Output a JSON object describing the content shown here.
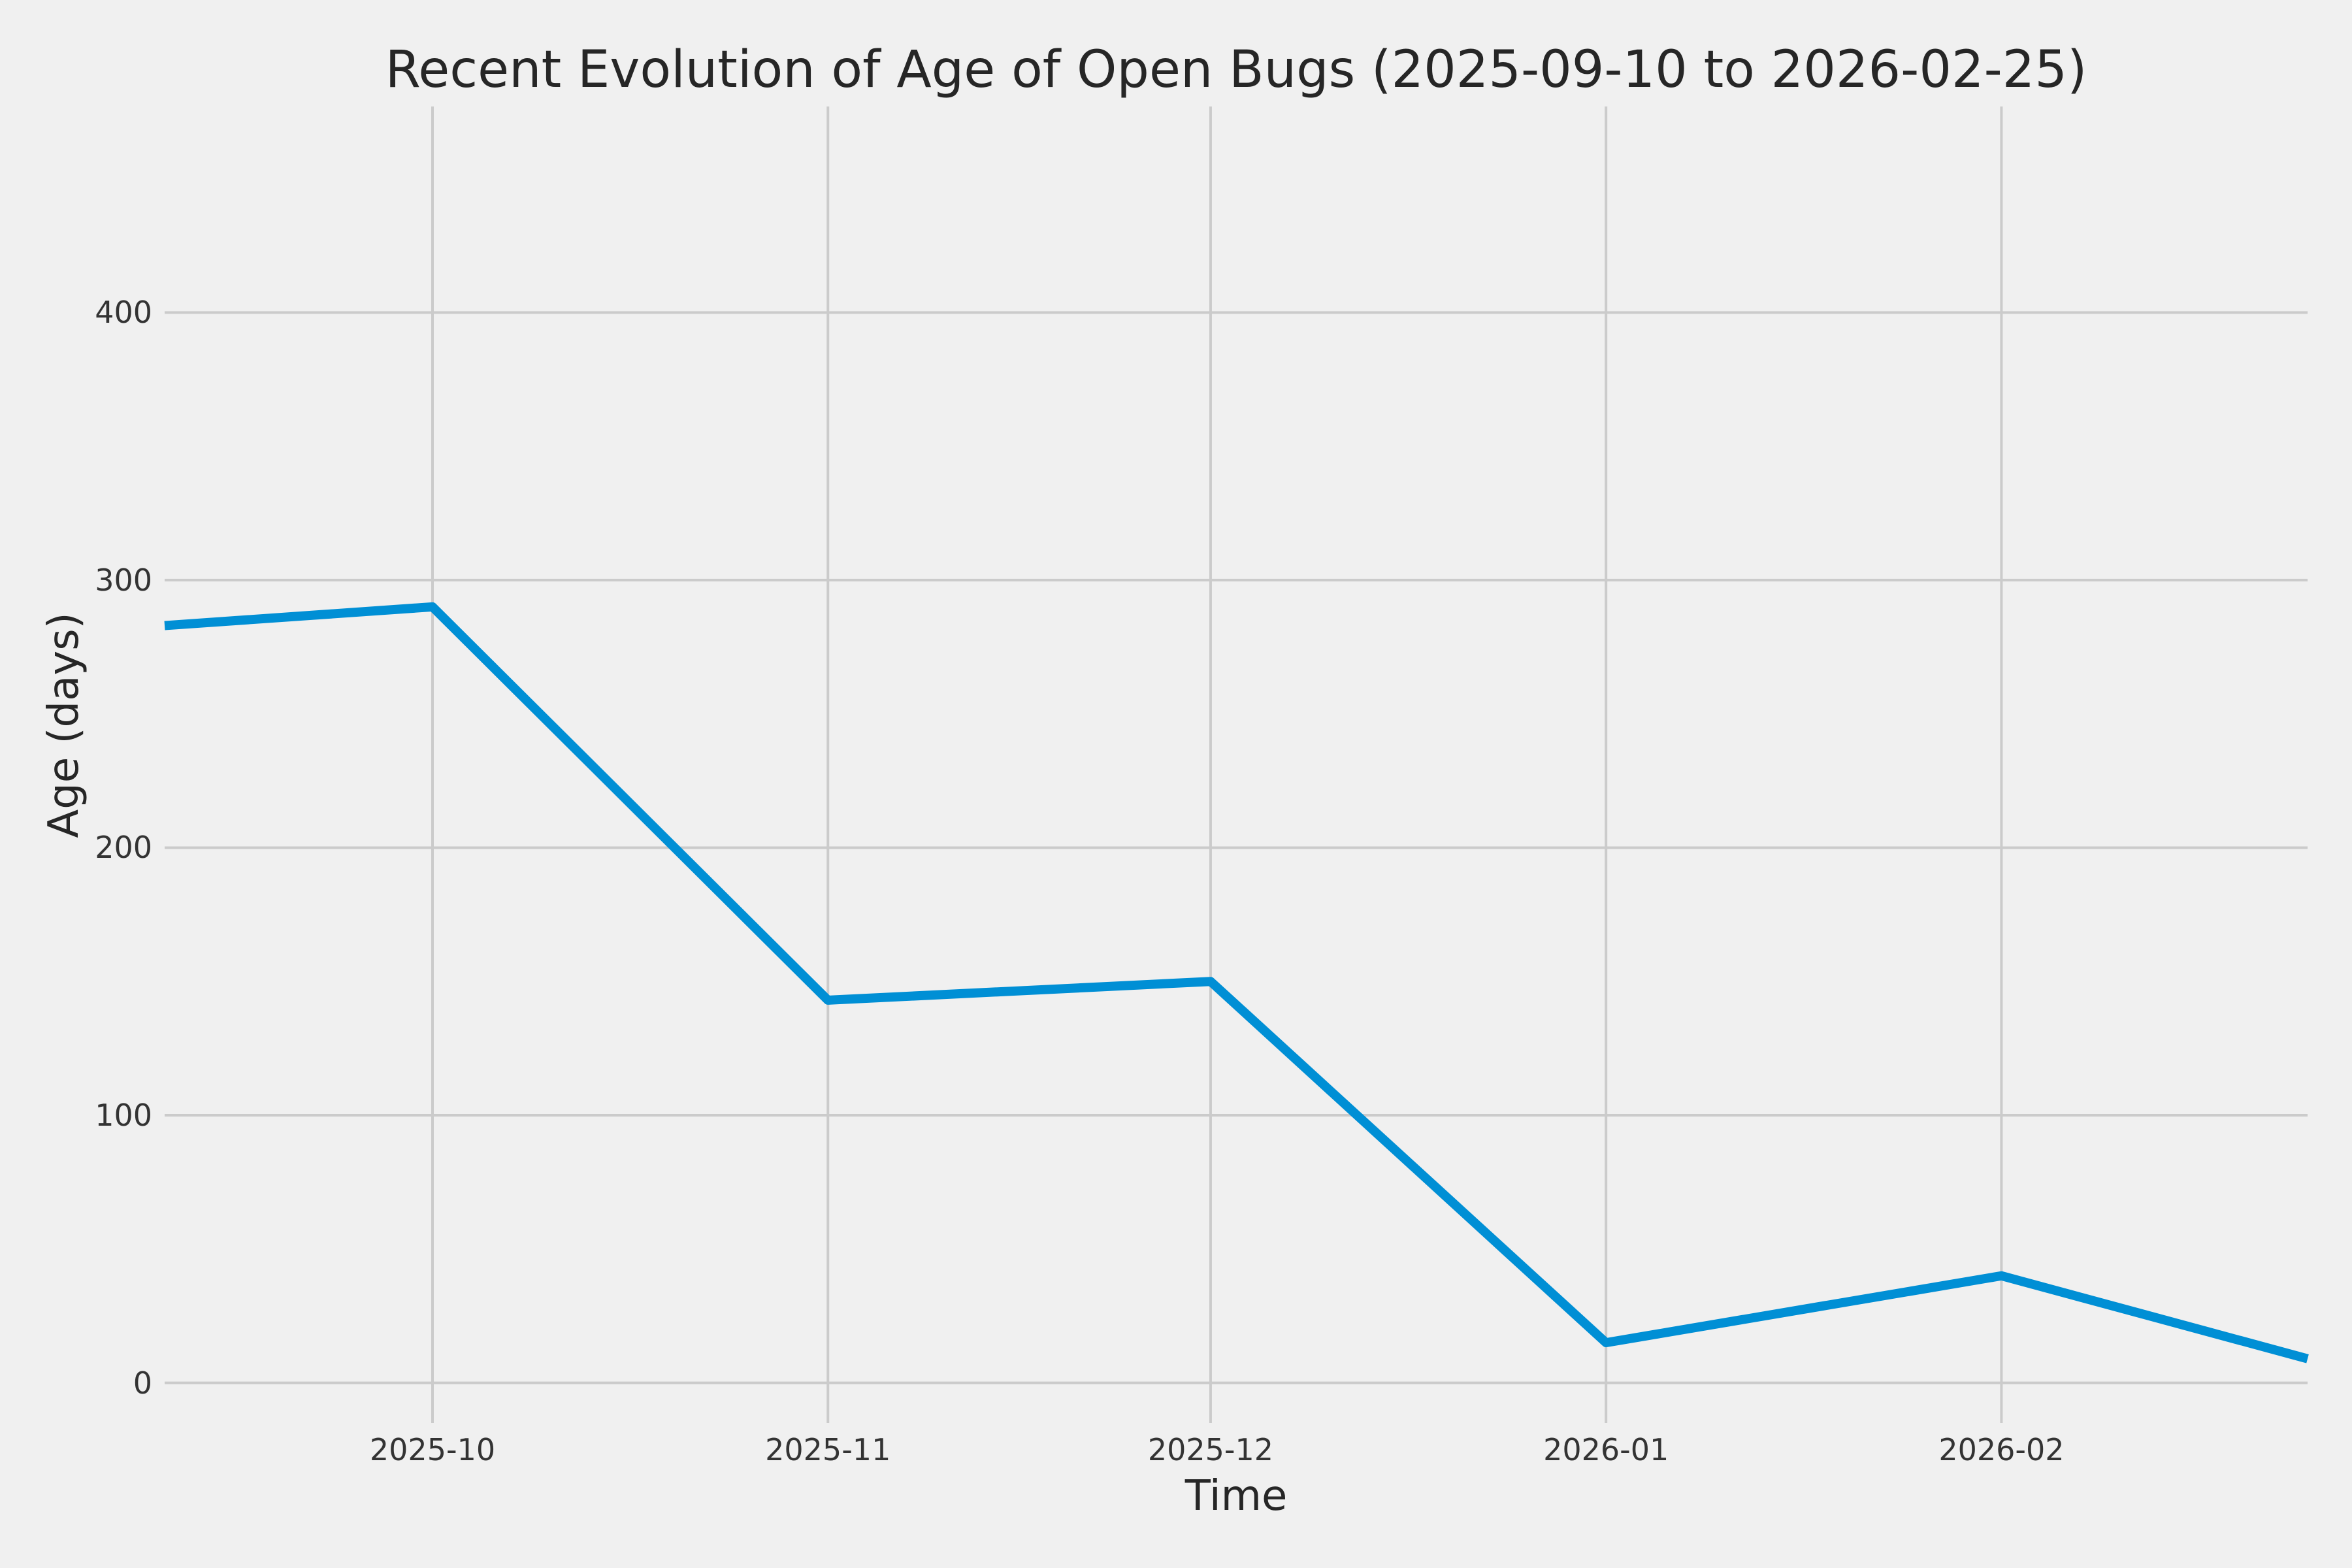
{
  "chart_data": {
    "type": "line",
    "title": "Recent Evolution of Age of Open Bugs (2025-09-10 to 2026-02-25)",
    "xlabel": "Time",
    "ylabel": "Age (days)",
    "grid": true,
    "legend": "none",
    "x_tick_labels": [
      "2025-10",
      "2025-11",
      "2025-12",
      "2026-01",
      "2026-02"
    ],
    "x_tick_days": [
      21,
      52,
      82,
      113,
      144
    ],
    "y_ticks": [
      0,
      100,
      200,
      300,
      400
    ],
    "xlim_days": [
      0,
      168
    ],
    "xlim_dates": [
      "2025-09-10",
      "2026-02-25"
    ],
    "ylim": [
      -15,
      477
    ],
    "series": [
      {
        "name": "age-of-open-bugs",
        "points": [
          {
            "date": "2025-09-10",
            "day": 0,
            "value": 283
          },
          {
            "date": "2025-10-01",
            "day": 21,
            "value": 290
          },
          {
            "date": "2025-11-01",
            "day": 52,
            "value": 143
          },
          {
            "date": "2025-12-01",
            "day": 82,
            "value": 150
          },
          {
            "date": "2026-01-01",
            "day": 113,
            "value": 15
          },
          {
            "date": "2026-02-01",
            "day": 144,
            "value": 40
          },
          {
            "date": "2026-02-25",
            "day": 168,
            "value": 9
          }
        ]
      }
    ],
    "colors": {
      "line": "#008fd5",
      "background": "#f0f0f0",
      "grid": "#cbcbcb",
      "text": "#262626",
      "tick_text": "#333333"
    }
  }
}
